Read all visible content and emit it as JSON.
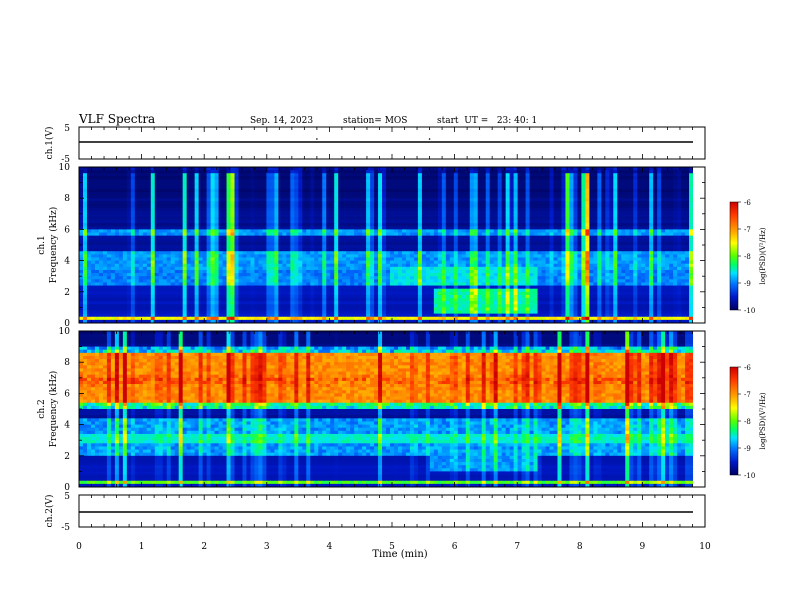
{
  "header": {
    "title": "VLF Spectra",
    "date": "Sep. 14, 2023",
    "station": "station= MOS",
    "start": "start  UT =   23: 40: 1"
  },
  "panels": {
    "ch1_wave": {
      "ylabel": "ch.1(V)",
      "yticks": [
        "5",
        "-5"
      ]
    },
    "ch1_spec": {
      "ylabel": "ch.1\nFrequency (kHz)",
      "yticks": [
        "0",
        "2",
        "4",
        "6",
        "8",
        "10"
      ]
    },
    "ch2_spec": {
      "ylabel": "ch.2\nFrequency (kHz)",
      "yticks": [
        "0",
        "2",
        "4",
        "6",
        "8",
        "10"
      ]
    },
    "ch2_wave": {
      "ylabel": "ch.2(V)",
      "yticks": [
        "5",
        "-5"
      ]
    }
  },
  "colorbar": {
    "label": "log(PSD)(V²/Hz)",
    "ticks": [
      "-6",
      "-7",
      "-8",
      "-9",
      "-10"
    ],
    "colors": [
      "#cc0000",
      "#ff3a00",
      "#ffaa00",
      "#ffff00",
      "#55ff00",
      "#00ff66",
      "#00e0ff",
      "#0070ff",
      "#0018c8",
      "#000060"
    ]
  },
  "xaxis": {
    "label": "Time (min)",
    "ticks": [
      "0",
      "1",
      "2",
      "3",
      "4",
      "5",
      "6",
      "7",
      "8",
      "9",
      "10"
    ]
  },
  "chart_data": {
    "type": "heatmap",
    "title": "VLF Spectra",
    "xlabel": "Time (min)",
    "ylabel": "Frequency (kHz)",
    "xlim": [
      0,
      10
    ],
    "ylim": [
      0,
      10
    ],
    "clim": [
      -10,
      -6
    ],
    "colorbar_label": "log(PSD)(V²/Hz)",
    "series": [
      {
        "name": "ch.1",
        "bands_khz": [
          [
            2.5,
            3.5,
            -8.6
          ],
          [
            3.5,
            4.5,
            -8.9
          ],
          [
            5.6,
            6.0,
            -8.9
          ],
          [
            0.2,
            0.4,
            -7.5
          ]
        ],
        "emission_interval_min": [
          5.0,
          7.3
        ]
      },
      {
        "name": "ch.2",
        "bands_khz": [
          [
            5.5,
            8.5,
            -7.0
          ],
          [
            2.8,
            3.4,
            -8.5
          ],
          [
            0.1,
            0.4,
            -8.0
          ]
        ]
      }
    ],
    "waveforms": [
      {
        "name": "ch.1(V)",
        "ylim": [
          -5,
          5
        ]
      },
      {
        "name": "ch.2(V)",
        "ylim": [
          -5,
          5
        ]
      }
    ]
  }
}
